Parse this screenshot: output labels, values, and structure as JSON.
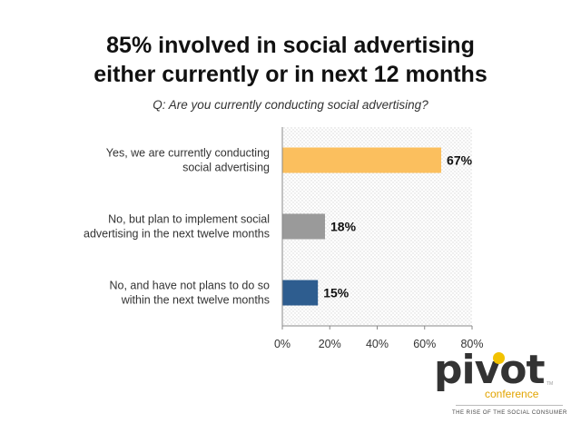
{
  "title_line1": "85% involved in social advertising",
  "title_line2": "either currently or in next 12 months",
  "question": "Q: Are you currently conducting social advertising?",
  "chart_data": {
    "type": "bar",
    "orientation": "horizontal",
    "categories": [
      [
        "Yes, we are currently conducting",
        "social advertising"
      ],
      [
        "No, but plan to implement social",
        "advertising in the next twelve months"
      ],
      [
        "No, and have not plans to do so",
        "within the next twelve months"
      ]
    ],
    "values": [
      67,
      18,
      15
    ],
    "data_labels": [
      "67%",
      "18%",
      "15%"
    ],
    "colors": [
      "#fbbf5e",
      "#9a9a9a",
      "#2e5d8f"
    ],
    "xlim": [
      0,
      80
    ],
    "ticks": [
      0,
      20,
      40,
      60,
      80
    ],
    "tick_labels": [
      "0%",
      "20%",
      "40%",
      "60%",
      "80%"
    ],
    "grid": false,
    "background_pattern": "dotted"
  },
  "logo": {
    "word": "pivot",
    "sub": "conference",
    "tm": "TM",
    "tagline": "THE RISE OF THE SOCIAL CONSUMER"
  }
}
